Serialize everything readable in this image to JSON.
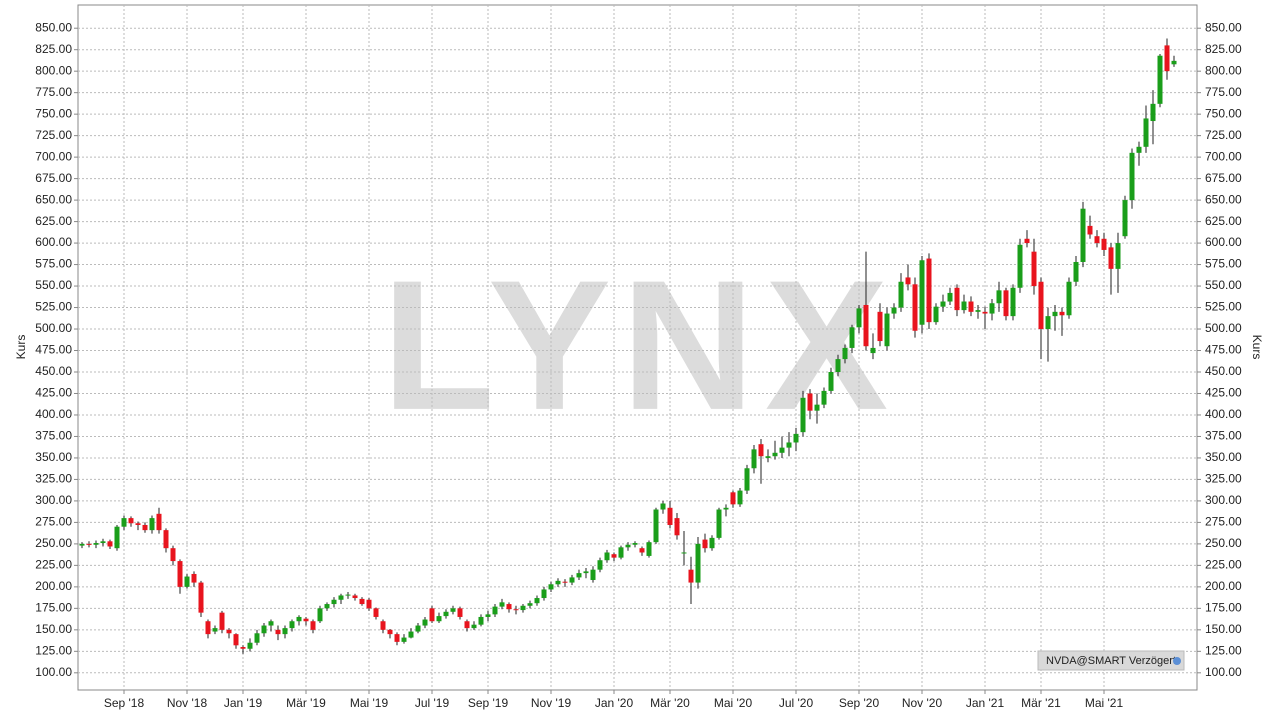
{
  "chart_data": {
    "type": "candlestick",
    "watermark": "LYNX",
    "y_label": "Kurs",
    "y2_label": "Kurs",
    "badge": "NVDA@SMART Verzögert",
    "up_color": "#1a9e1a",
    "down_color": "#e8141e",
    "grid": true,
    "ylim": [
      80,
      877
    ],
    "yticks": [
      {
        "value": 100,
        "label": "100.00"
      },
      {
        "value": 125,
        "label": "125.00"
      },
      {
        "value": 150,
        "label": "150.00"
      },
      {
        "value": 175,
        "label": "175.00"
      },
      {
        "value": 200,
        "label": "200.00"
      },
      {
        "value": 225,
        "label": "225.00"
      },
      {
        "value": 250,
        "label": "250.00"
      },
      {
        "value": 275,
        "label": "275.00"
      },
      {
        "value": 300,
        "label": "300.00"
      },
      {
        "value": 325,
        "label": "325.00"
      },
      {
        "value": 350,
        "label": "350.00"
      },
      {
        "value": 375,
        "label": "375.00"
      },
      {
        "value": 400,
        "label": "400.00"
      },
      {
        "value": 425,
        "label": "425.00"
      },
      {
        "value": 450,
        "label": "450.00"
      },
      {
        "value": 475,
        "label": "475.00"
      },
      {
        "value": 500,
        "label": "500.00"
      },
      {
        "value": 525,
        "label": "525.00"
      },
      {
        "value": 550,
        "label": "550.00"
      },
      {
        "value": 575,
        "label": "575.00"
      },
      {
        "value": 600,
        "label": "600.00"
      },
      {
        "value": 625,
        "label": "625.00"
      },
      {
        "value": 650,
        "label": "650.00"
      },
      {
        "value": 675,
        "label": "675.00"
      },
      {
        "value": 700,
        "label": "700.00"
      },
      {
        "value": 725,
        "label": "725.00"
      },
      {
        "value": 750,
        "label": "750.00"
      },
      {
        "value": 775,
        "label": "775.00"
      },
      {
        "value": 800,
        "label": "800.00"
      },
      {
        "value": 825,
        "label": "825.00"
      },
      {
        "value": 850,
        "label": "850.00"
      }
    ],
    "categories": [
      null,
      null,
      null,
      null,
      null,
      null,
      "Sep '18",
      null,
      null,
      null,
      null,
      null,
      null,
      null,
      null,
      "Nov '18",
      null,
      null,
      null,
      null,
      null,
      null,
      null,
      "Jan '19",
      null,
      null,
      null,
      null,
      null,
      null,
      null,
      null,
      "Mär '19",
      null,
      null,
      null,
      null,
      null,
      null,
      null,
      null,
      "Mai '19",
      null,
      null,
      null,
      null,
      null,
      null,
      null,
      null,
      "Jul '19",
      null,
      null,
      null,
      null,
      null,
      null,
      null,
      "Sep '19",
      null,
      null,
      null,
      null,
      null,
      null,
      null,
      null,
      "Nov '19",
      null,
      null,
      null,
      null,
      null,
      null,
      null,
      null,
      "Jan '20",
      null,
      null,
      null,
      null,
      null,
      null,
      null,
      "Mär '20",
      null,
      null,
      null,
      null,
      null,
      null,
      null,
      null,
      "Mai '20",
      null,
      null,
      null,
      null,
      null,
      null,
      null,
      null,
      "Jul '20",
      null,
      null,
      null,
      null,
      null,
      null,
      null,
      null,
      "Sep '20",
      null,
      null,
      null,
      null,
      null,
      null,
      null,
      null,
      "Nov '20",
      null,
      null,
      null,
      null,
      null,
      null,
      null,
      null,
      "Jan '21",
      null,
      null,
      null,
      null,
      null,
      null,
      null,
      "Mär '21",
      null,
      null,
      null,
      null,
      null,
      null,
      null,
      null,
      "Mai '21",
      null,
      null,
      null,
      null,
      null,
      null,
      null,
      null,
      null,
      null
    ],
    "ohlc": [
      [
        248,
        252,
        245,
        250
      ],
      [
        250,
        253,
        246,
        249
      ],
      [
        249,
        254,
        245,
        251
      ],
      [
        251,
        256,
        247,
        253
      ],
      [
        253,
        255,
        244,
        247
      ],
      [
        245,
        272,
        242,
        270
      ],
      [
        270,
        283,
        266,
        280
      ],
      [
        280,
        282,
        270,
        274
      ],
      [
        274,
        276,
        266,
        272
      ],
      [
        272,
        275,
        263,
        266
      ],
      [
        266,
        283,
        262,
        280
      ],
      [
        285,
        292,
        262,
        266
      ],
      [
        266,
        268,
        240,
        245
      ],
      [
        245,
        248,
        225,
        230
      ],
      [
        230,
        232,
        192,
        200
      ],
      [
        200,
        215,
        198,
        212
      ],
      [
        215,
        218,
        200,
        205
      ],
      [
        205,
        207,
        165,
        170
      ],
      [
        160,
        162,
        140,
        145
      ],
      [
        148,
        155,
        145,
        152
      ],
      [
        170,
        172,
        146,
        150
      ],
      [
        150,
        152,
        140,
        146
      ],
      [
        145,
        146,
        128,
        132
      ],
      [
        130,
        132,
        122,
        128
      ],
      [
        128,
        140,
        125,
        135
      ],
      [
        135,
        150,
        132,
        146
      ],
      [
        146,
        158,
        142,
        155
      ],
      [
        155,
        162,
        148,
        160
      ],
      [
        150,
        155,
        138,
        145
      ],
      [
        145,
        155,
        140,
        152
      ],
      [
        152,
        162,
        148,
        160
      ],
      [
        160,
        167,
        155,
        165
      ],
      [
        163,
        165,
        155,
        160
      ],
      [
        160,
        162,
        146,
        150
      ],
      [
        160,
        178,
        158,
        175
      ],
      [
        175,
        182,
        172,
        180
      ],
      [
        180,
        188,
        176,
        185
      ],
      [
        185,
        192,
        180,
        190
      ],
      [
        190,
        194,
        186,
        191
      ],
      [
        190,
        192,
        184,
        187
      ],
      [
        186,
        188,
        178,
        180
      ],
      [
        185,
        187,
        172,
        175
      ],
      [
        175,
        176,
        162,
        165
      ],
      [
        160,
        162,
        146,
        150
      ],
      [
        150,
        151,
        140,
        145
      ],
      [
        145,
        147,
        132,
        136
      ],
      [
        136,
        145,
        134,
        141
      ],
      [
        141,
        152,
        140,
        148
      ],
      [
        148,
        158,
        146,
        155
      ],
      [
        155,
        165,
        152,
        162
      ],
      [
        175,
        178,
        158,
        160
      ],
      [
        160,
        170,
        158,
        166
      ],
      [
        166,
        174,
        163,
        171
      ],
      [
        171,
        178,
        168,
        175
      ],
      [
        175,
        177,
        162,
        165
      ],
      [
        160,
        162,
        148,
        152
      ],
      [
        152,
        160,
        150,
        156
      ],
      [
        156,
        168,
        154,
        165
      ],
      [
        165,
        172,
        160,
        168
      ],
      [
        168,
        180,
        165,
        177
      ],
      [
        177,
        186,
        174,
        182
      ],
      [
        180,
        182,
        170,
        174
      ],
      [
        174,
        178,
        168,
        173
      ],
      [
        173,
        180,
        170,
        178
      ],
      [
        178,
        184,
        175,
        181
      ],
      [
        181,
        190,
        178,
        187
      ],
      [
        187,
        200,
        184,
        197
      ],
      [
        197,
        206,
        194,
        203
      ],
      [
        203,
        210,
        200,
        207
      ],
      [
        206,
        209,
        200,
        205
      ],
      [
        205,
        214,
        202,
        211
      ],
      [
        211,
        220,
        208,
        216
      ],
      [
        216,
        222,
        210,
        218
      ],
      [
        208,
        224,
        205,
        220
      ],
      [
        220,
        234,
        217,
        231
      ],
      [
        231,
        243,
        228,
        240
      ],
      [
        238,
        240,
        230,
        234
      ],
      [
        234,
        248,
        232,
        246
      ],
      [
        246,
        252,
        242,
        249
      ],
      [
        249,
        253,
        246,
        251
      ],
      [
        245,
        247,
        236,
        240
      ],
      [
        236,
        254,
        234,
        252
      ],
      [
        252,
        292,
        250,
        290
      ],
      [
        290,
        300,
        285,
        297
      ],
      [
        292,
        300,
        268,
        272
      ],
      [
        280,
        286,
        255,
        260
      ],
      [
        240,
        265,
        225,
        240
      ],
      [
        220,
        235,
        180,
        205
      ],
      [
        205,
        258,
        198,
        250
      ],
      [
        255,
        262,
        240,
        245
      ],
      [
        245,
        260,
        242,
        257
      ],
      [
        257,
        292,
        255,
        290
      ],
      [
        290,
        296,
        282,
        292
      ],
      [
        310,
        312,
        292,
        296
      ],
      [
        296,
        315,
        293,
        312
      ],
      [
        312,
        342,
        308,
        338
      ],
      [
        338,
        365,
        332,
        360
      ],
      [
        366,
        372,
        320,
        352
      ],
      [
        350,
        360,
        345,
        352
      ],
      [
        352,
        370,
        348,
        356
      ],
      [
        356,
        375,
        350,
        362
      ],
      [
        362,
        380,
        352,
        368
      ],
      [
        368,
        385,
        358,
        378
      ],
      [
        380,
        428,
        375,
        420
      ],
      [
        425,
        430,
        395,
        405
      ],
      [
        405,
        425,
        390,
        412
      ],
      [
        412,
        432,
        408,
        428
      ],
      [
        428,
        455,
        425,
        450
      ],
      [
        450,
        470,
        445,
        465
      ],
      [
        465,
        482,
        460,
        478
      ],
      [
        478,
        505,
        472,
        502
      ],
      [
        502,
        528,
        495,
        524
      ],
      [
        528,
        590,
        475,
        480
      ],
      [
        472,
        495,
        465,
        478
      ],
      [
        520,
        530,
        480,
        486
      ],
      [
        480,
        525,
        475,
        518
      ],
      [
        518,
        530,
        512,
        525
      ],
      [
        525,
        565,
        520,
        555
      ],
      [
        560,
        575,
        545,
        552
      ],
      [
        552,
        560,
        490,
        498
      ],
      [
        505,
        585,
        495,
        580
      ],
      [
        582,
        588,
        500,
        508
      ],
      [
        508,
        530,
        505,
        526
      ],
      [
        526,
        540,
        520,
        532
      ],
      [
        532,
        548,
        528,
        542
      ],
      [
        548,
        552,
        515,
        522
      ],
      [
        522,
        540,
        518,
        532
      ],
      [
        532,
        538,
        515,
        520
      ],
      [
        520,
        528,
        512,
        522
      ],
      [
        520,
        526,
        500,
        518
      ],
      [
        518,
        535,
        510,
        530
      ],
      [
        530,
        555,
        520,
        545
      ],
      [
        545,
        548,
        510,
        515
      ],
      [
        515,
        552,
        510,
        548
      ],
      [
        548,
        605,
        542,
        598
      ],
      [
        605,
        615,
        595,
        600
      ],
      [
        590,
        605,
        540,
        550
      ],
      [
        555,
        560,
        465,
        500
      ],
      [
        500,
        525,
        462,
        515
      ],
      [
        515,
        528,
        498,
        520
      ],
      [
        520,
        525,
        492,
        516
      ],
      [
        516,
        560,
        512,
        555
      ],
      [
        555,
        585,
        550,
        578
      ],
      [
        578,
        648,
        572,
        640
      ],
      [
        620,
        632,
        605,
        610
      ],
      [
        608,
        615,
        595,
        600
      ],
      [
        605,
        612,
        585,
        592
      ],
      [
        595,
        600,
        540,
        570
      ],
      [
        570,
        612,
        542,
        600
      ],
      [
        608,
        655,
        605,
        650
      ],
      [
        650,
        710,
        640,
        705
      ],
      [
        705,
        718,
        690,
        712
      ],
      [
        712,
        760,
        705,
        745
      ],
      [
        742,
        778,
        715,
        762
      ],
      [
        762,
        820,
        758,
        818
      ],
      [
        830,
        838,
        790,
        800
      ],
      [
        808,
        818,
        805,
        812
      ]
    ]
  }
}
